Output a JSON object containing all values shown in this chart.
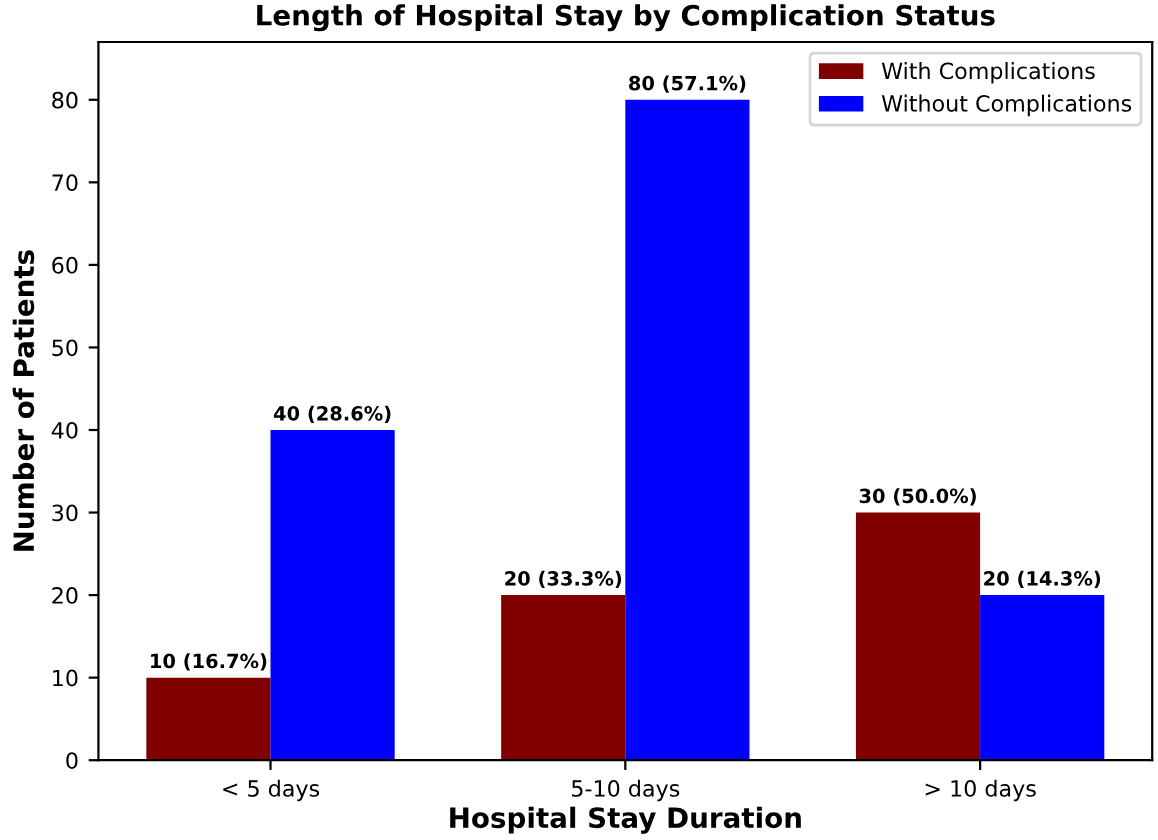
{
  "chart_data": {
    "type": "bar",
    "title": "Length of Hospital Stay by Complication Status",
    "xlabel": "Hospital Stay Duration",
    "ylabel": "Number of Patients",
    "categories": [
      "< 5 days",
      "5-10 days",
      "> 10 days"
    ],
    "series": [
      {
        "name": "With Complications",
        "color": "#800000",
        "values": [
          10,
          20,
          30
        ],
        "value_labels": [
          "10 (16.7%)",
          "20 (33.3%)",
          "30 (50.0%)"
        ]
      },
      {
        "name": "Without Complications",
        "color": "#0000ff",
        "values": [
          40,
          80,
          20
        ],
        "value_labels": [
          "40 (28.6%)",
          "80 (57.1%)",
          "20 (14.3%)"
        ]
      }
    ],
    "ylim": [
      0,
      87
    ],
    "yticks": [
      0,
      10,
      20,
      30,
      40,
      50,
      60,
      70,
      80
    ],
    "grid": false,
    "legend": "top right"
  }
}
